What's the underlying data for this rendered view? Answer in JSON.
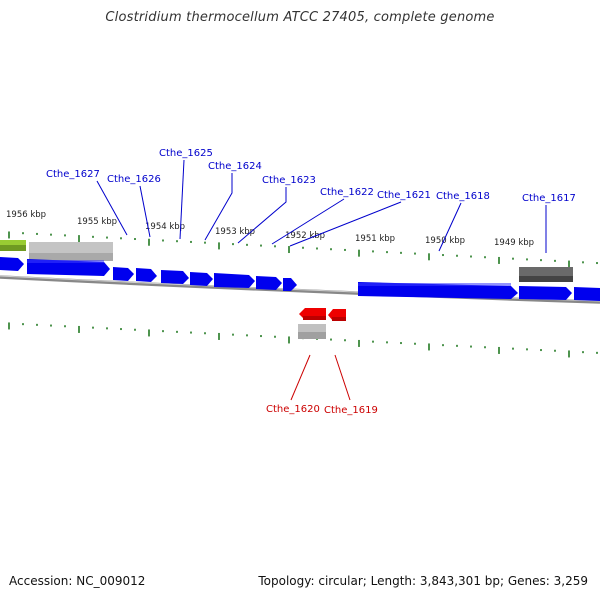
{
  "title": "Clostridium thermocellum ATCC 27405, complete genome",
  "footer": {
    "accession": "Accession: NC_009012",
    "topology": "Topology: circular; Length: 3,843,301 bp; Genes: 3,259"
  },
  "colors": {
    "forward_gene": "#0000ee",
    "reverse_gene": "#ee0000",
    "forward_label": "#0000cc",
    "reverse_label": "#cc0000",
    "tick": "#227a22",
    "backbone": "#888888",
    "feature_light": "#c0c0c0",
    "feature_dark": "#666666",
    "feature_green": "#99cc33"
  },
  "scale_labels": [
    "1956 kbp",
    "1955 kbp",
    "1954 kbp",
    "1953 kbp",
    "1952 kbp",
    "1951 kbp",
    "1950 kbp",
    "1949 kbp"
  ],
  "forward_genes": [
    "Cthe_1627",
    "Cthe_1626",
    "Cthe_1625",
    "Cthe_1624",
    "Cthe_1623",
    "Cthe_1622",
    "Cthe_1621",
    "Cthe_1618",
    "Cthe_1617"
  ],
  "reverse_genes": [
    "Cthe_1620",
    "Cthe_1619"
  ]
}
